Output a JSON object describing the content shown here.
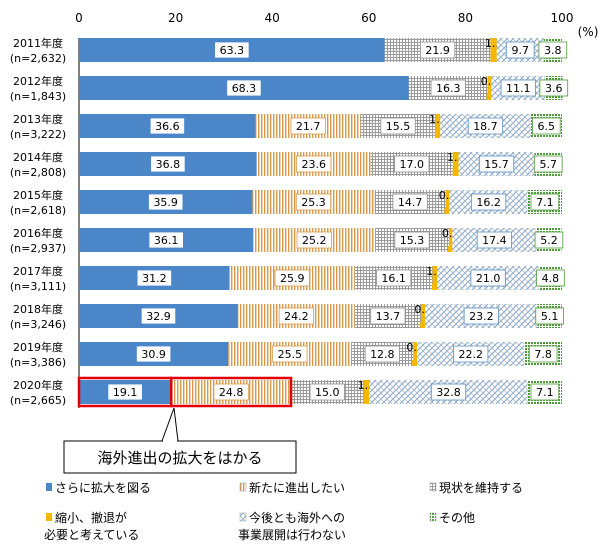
{
  "chart_data": {
    "type": "bar",
    "orientation": "horizontal",
    "stacked": true,
    "unit_label": "(%)",
    "xlim": [
      0,
      100
    ],
    "xticks": [
      0,
      20,
      40,
      60,
      80,
      100
    ],
    "categories": [
      {
        "year": "2011年度",
        "n": "(n=2,632)"
      },
      {
        "year": "2012年度",
        "n": "(n=1,843)"
      },
      {
        "year": "2013年度",
        "n": "(n=3,222)"
      },
      {
        "year": "2014年度",
        "n": "(n=2,808)"
      },
      {
        "year": "2015年度",
        "n": "(n=2,618)"
      },
      {
        "year": "2016年度",
        "n": "(n=2,937)"
      },
      {
        "year": "2017年度",
        "n": "(n=3,111)"
      },
      {
        "year": "2018年度",
        "n": "(n=3,246)"
      },
      {
        "year": "2019年度",
        "n": "(n=3,386)"
      },
      {
        "year": "2020年度",
        "n": "(n=2,665)"
      }
    ],
    "series": [
      {
        "name": "さらに拡大を図る",
        "color": "#4a86c8",
        "pattern": "solid",
        "values": [
          63.3,
          68.3,
          36.6,
          36.8,
          35.9,
          36.1,
          31.2,
          32.9,
          30.9,
          19.1
        ]
      },
      {
        "name": "新たに進出したい",
        "color": "#d79a4a",
        "pattern": "vstripe",
        "values": [
          0,
          0,
          21.7,
          23.6,
          25.3,
          25.2,
          25.9,
          24.2,
          25.5,
          24.8
        ]
      },
      {
        "name": "現状を維持する",
        "color": "#8c8c8c",
        "pattern": "grid",
        "values": [
          21.9,
          16.3,
          15.5,
          17.0,
          14.7,
          15.3,
          16.1,
          13.7,
          12.8,
          15.0
        ]
      },
      {
        "name_lines": [
          "縮小、撤退が",
          "必要と考えている"
        ],
        "color": "#f5b800",
        "pattern": "solid",
        "values": [
          1.3,
          0.8,
          1.0,
          1.2,
          0.8,
          0.7,
          1.0,
          0.9,
          0.8,
          1.2
        ]
      },
      {
        "name_lines": [
          "今後とも海外への",
          "事業展開は行わない"
        ],
        "color": "#5a8fc0",
        "pattern": "diag",
        "values": [
          9.7,
          11.1,
          18.7,
          15.7,
          16.2,
          17.4,
          21.0,
          23.2,
          22.2,
          32.8
        ]
      },
      {
        "name": "その他",
        "color": "#4f9a3a",
        "pattern": "dots",
        "values": [
          3.8,
          3.6,
          6.5,
          5.7,
          7.1,
          5.2,
          4.8,
          5.1,
          7.8,
          7.1
        ]
      }
    ],
    "callout": "海外進出の拡大をはかる",
    "legend_position": "bottom"
  }
}
